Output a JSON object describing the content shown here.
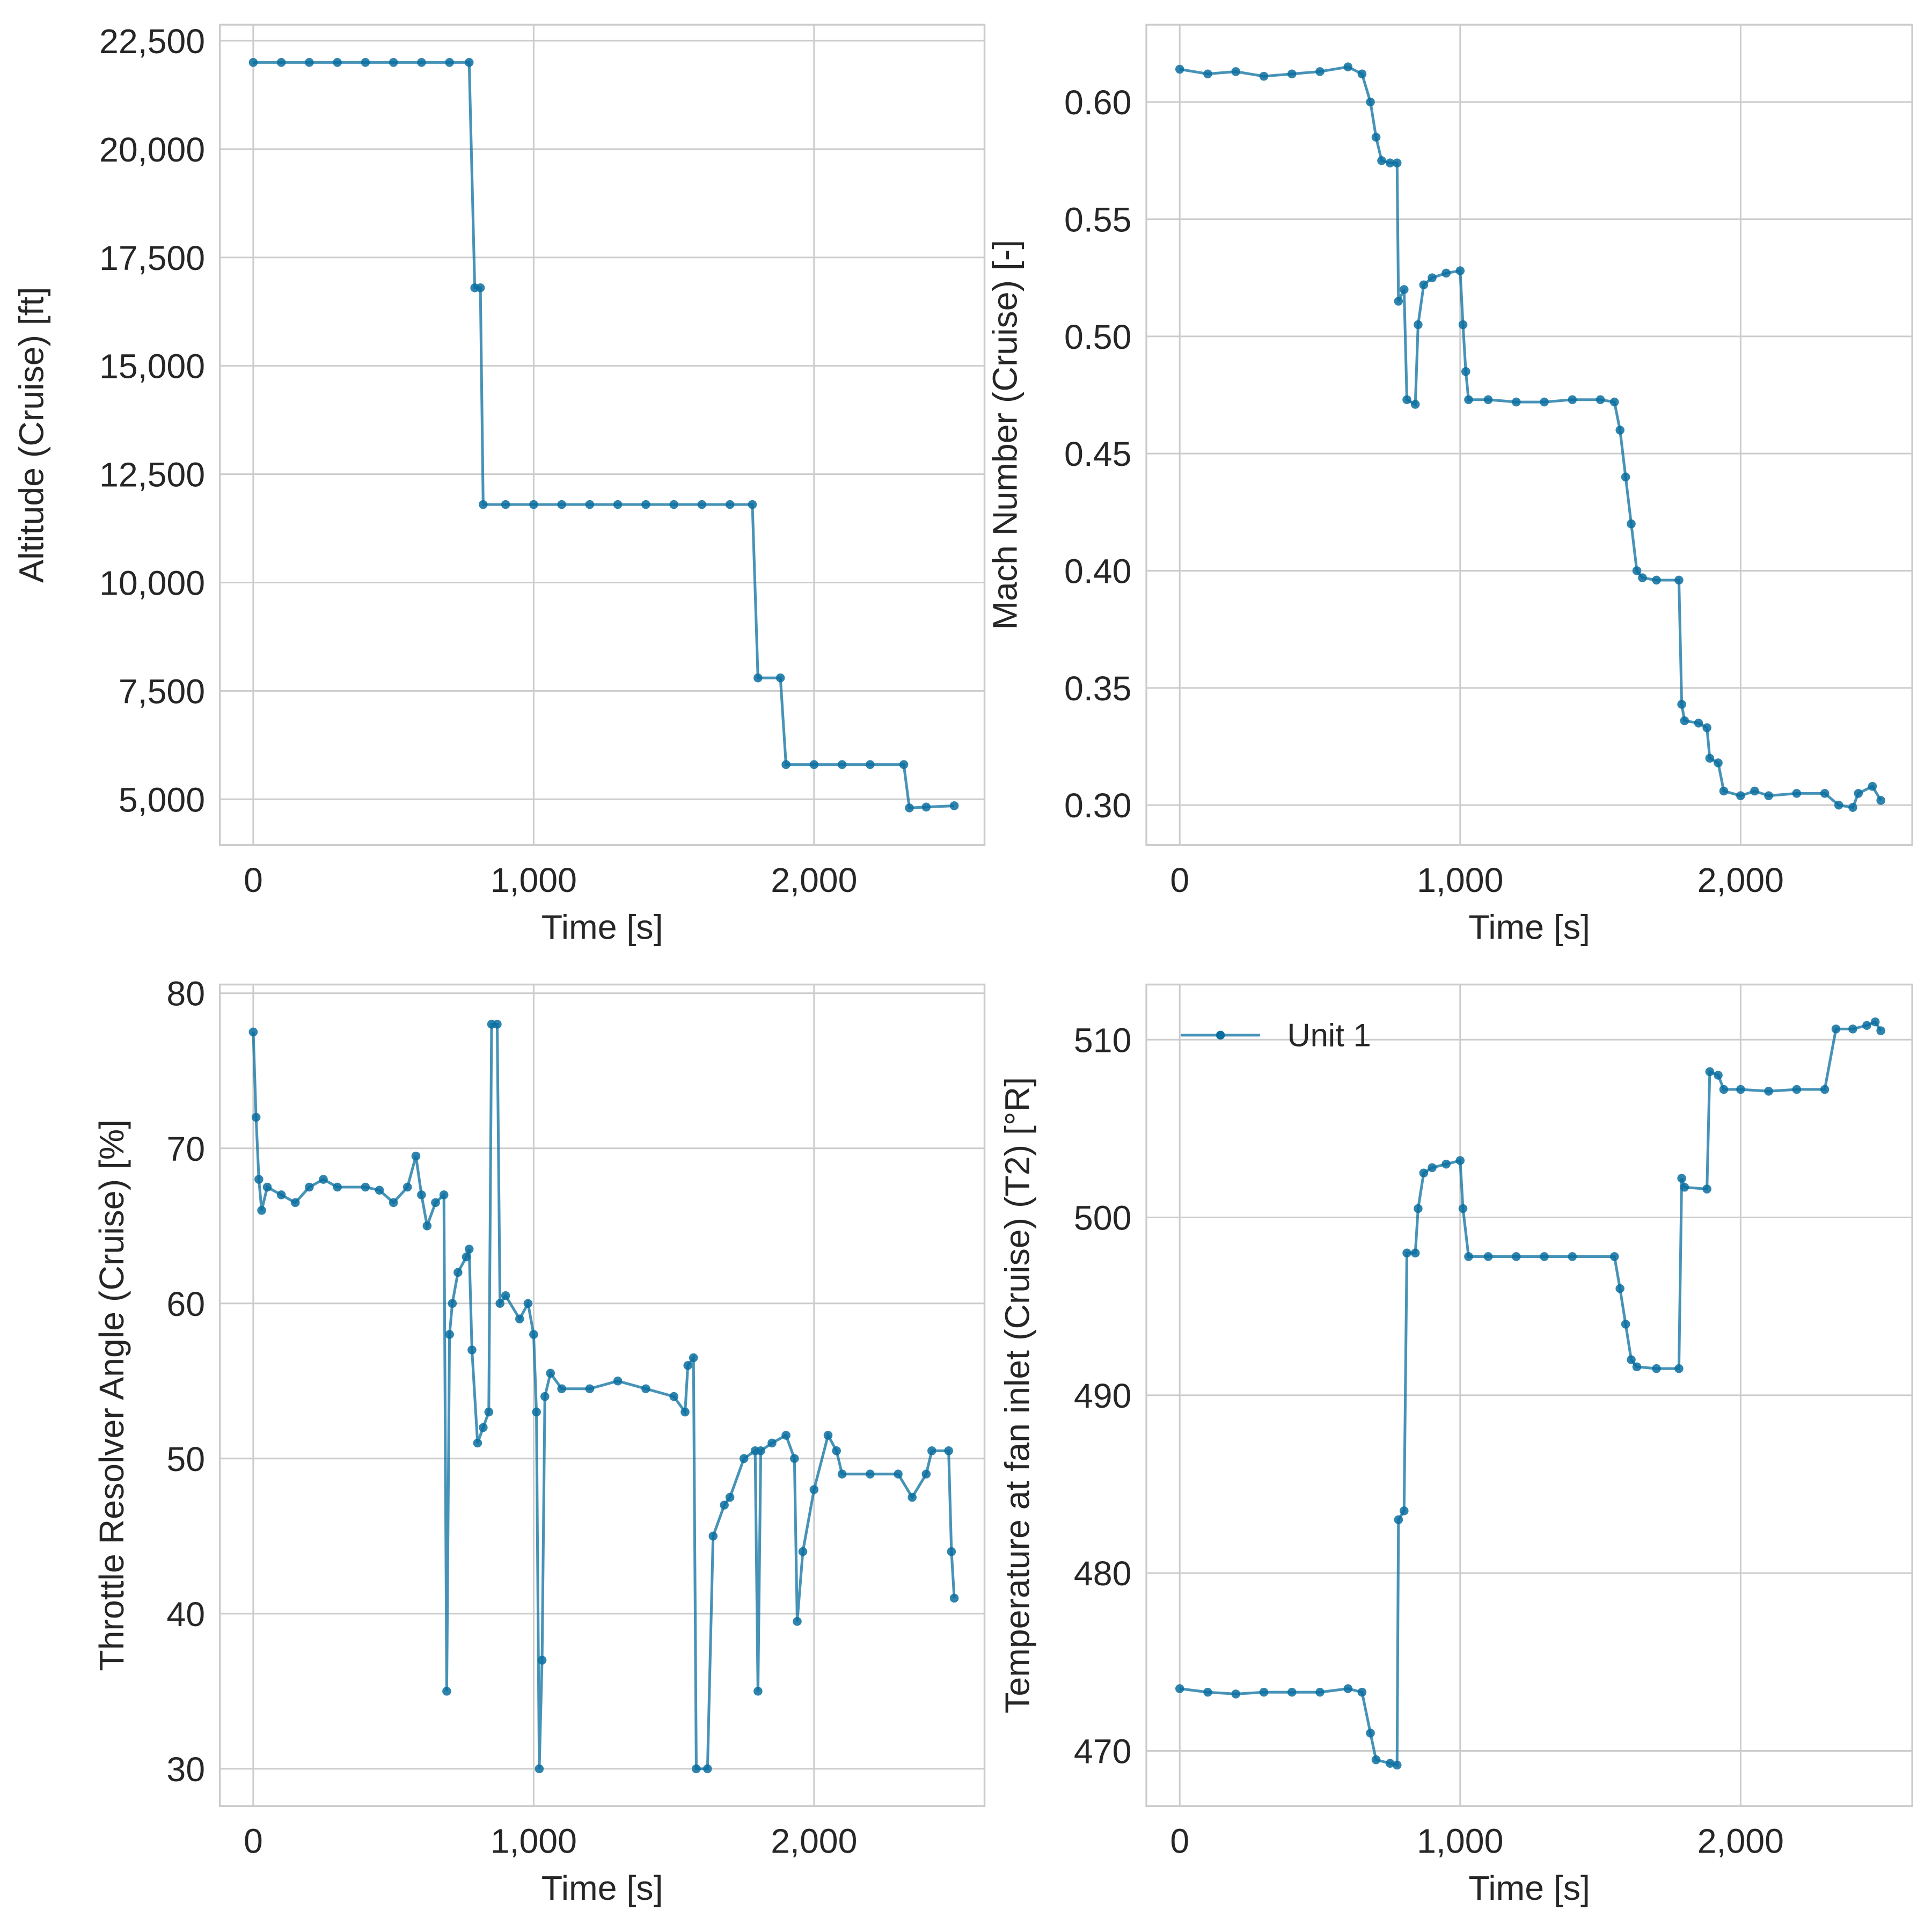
{
  "chart_data": [
    {
      "type": "line",
      "xlabel": "Time [s]",
      "ylabel": "Altitude (Cruise) [ft]",
      "xlim": [
        -119,
        2608
      ],
      "ylim": [
        3946,
        22870
      ],
      "xticks": [
        0,
        {
          "value": 1000,
          "label": "1,000"
        },
        {
          "value": 2000,
          "label": "2,000"
        }
      ],
      "yticks": [
        {
          "value": 5000,
          "label": "5,000"
        },
        {
          "value": 7500,
          "label": "7,500"
        },
        {
          "value": 10000,
          "label": "10,000"
        },
        {
          "value": 12500,
          "label": "12,500"
        },
        {
          "value": 15000,
          "label": "15,000"
        },
        {
          "value": 17500,
          "label": "17,500"
        },
        {
          "value": 20000,
          "label": "20,000"
        },
        {
          "value": 22500,
          "label": "22,500"
        }
      ],
      "grid": true,
      "x": [
        0,
        100,
        200,
        300,
        400,
        500,
        600,
        700,
        770,
        790,
        810,
        820,
        900,
        1000,
        1100,
        1200,
        1300,
        1400,
        1500,
        1600,
        1700,
        1780,
        1800,
        1880,
        1900,
        2000,
        2100,
        2200,
        2320,
        2340,
        2400,
        2500
      ],
      "series": [
        {
          "color": "#0a6fa0",
          "values": [
            22000,
            22000,
            22000,
            22000,
            22000,
            22000,
            22000,
            22000,
            22000,
            16800,
            16800,
            11800,
            11800,
            11800,
            11800,
            11800,
            11800,
            11800,
            11800,
            11800,
            11800,
            11800,
            7800,
            7800,
            5800,
            5800,
            5800,
            5800,
            5800,
            4800,
            4820,
            4850
          ]
        }
      ]
    },
    {
      "type": "line",
      "xlabel": "Time [s]",
      "ylabel": "Mach Number (Cruise) [-]",
      "xlim": [
        -119,
        2612
      ],
      "ylim": [
        0.283,
        0.633
      ],
      "xticks": [
        0,
        {
          "value": 1000,
          "label": "1,000"
        },
        {
          "value": 2000,
          "label": "2,000"
        }
      ],
      "yticks": [
        {
          "value": 0.3,
          "label": "0.30"
        },
        {
          "value": 0.35,
          "label": "0.35"
        },
        {
          "value": 0.4,
          "label": "0.40"
        },
        {
          "value": 0.45,
          "label": "0.45"
        },
        {
          "value": 0.5,
          "label": "0.50"
        },
        {
          "value": 0.55,
          "label": "0.55"
        },
        {
          "value": 0.6,
          "label": "0.60"
        }
      ],
      "grid": true,
      "x": [
        0,
        100,
        200,
        300,
        400,
        500,
        600,
        650,
        680,
        700,
        720,
        750,
        775,
        780,
        800,
        810,
        840,
        850,
        870,
        900,
        950,
        1000,
        1010,
        1020,
        1030,
        1100,
        1200,
        1300,
        1400,
        1500,
        1550,
        1570,
        1590,
        1610,
        1630,
        1650,
        1700,
        1780,
        1790,
        1800,
        1850,
        1880,
        1890,
        1920,
        1940,
        2000,
        2050,
        2100,
        2200,
        2300,
        2350,
        2400,
        2420,
        2470,
        2500
      ],
      "series": [
        {
          "color": "#0a6fa0",
          "values": [
            0.614,
            0.612,
            0.613,
            0.611,
            0.612,
            0.613,
            0.615,
            0.612,
            0.6,
            0.585,
            0.575,
            0.574,
            0.574,
            0.515,
            0.52,
            0.473,
            0.471,
            0.505,
            0.522,
            0.525,
            0.527,
            0.528,
            0.505,
            0.485,
            0.473,
            0.473,
            0.472,
            0.472,
            0.473,
            0.473,
            0.472,
            0.46,
            0.44,
            0.42,
            0.4,
            0.397,
            0.396,
            0.396,
            0.343,
            0.336,
            0.335,
            0.333,
            0.32,
            0.318,
            0.306,
            0.304,
            0.306,
            0.304,
            0.305,
            0.305,
            0.3,
            0.299,
            0.305,
            0.308,
            0.302
          ]
        }
      ]
    },
    {
      "type": "line",
      "xlabel": "Time [s]",
      "ylabel": "Throttle Resolver Angle (Cruise) [%]",
      "xlim": [
        -119,
        2608
      ],
      "ylim": [
        27.6,
        80.56
      ],
      "xticks": [
        0,
        {
          "value": 1000,
          "label": "1,000"
        },
        {
          "value": 2000,
          "label": "2,000"
        }
      ],
      "yticks": [
        30,
        40,
        50,
        60,
        70,
        80
      ],
      "grid": true,
      "x": [
        0,
        10,
        20,
        30,
        50,
        100,
        150,
        200,
        250,
        300,
        400,
        450,
        500,
        550,
        580,
        600,
        620,
        650,
        680,
        690,
        700,
        710,
        730,
        760,
        770,
        780,
        800,
        820,
        840,
        850,
        870,
        880,
        900,
        950,
        980,
        1000,
        1010,
        1020,
        1030,
        1040,
        1060,
        1100,
        1200,
        1300,
        1400,
        1500,
        1540,
        1550,
        1570,
        1580,
        1620,
        1640,
        1680,
        1700,
        1750,
        1790,
        1800,
        1810,
        1850,
        1900,
        1930,
        1940,
        1960,
        2000,
        2050,
        2080,
        2100,
        2200,
        2300,
        2350,
        2400,
        2420,
        2480,
        2490,
        2500
      ],
      "series": [
        {
          "color": "#0a6fa0",
          "values": [
            77.5,
            72,
            68,
            66,
            67.5,
            67,
            66.5,
            67.5,
            68,
            67.5,
            67.5,
            67.3,
            66.5,
            67.5,
            69.5,
            67,
            65,
            66.5,
            67,
            35,
            58,
            60,
            62,
            63,
            63.5,
            57,
            51,
            52,
            53,
            78,
            78,
            60,
            60.5,
            59,
            60,
            58,
            53,
            30,
            37,
            54,
            55.5,
            54.5,
            54.5,
            55,
            54.5,
            54,
            53,
            56,
            56.5,
            30,
            30,
            45,
            47,
            47.5,
            50,
            50.5,
            35,
            50.5,
            51,
            51.5,
            50,
            39.5,
            44,
            48,
            51.5,
            50.5,
            49,
            49,
            49,
            47.5,
            49,
            50.5,
            50.5,
            44,
            41
          ]
        }
      ]
    },
    {
      "type": "line",
      "xlabel": "Time [s]",
      "ylabel": "Temperature at fan inlet (Cruise) (T2) [°R]",
      "xlim": [
        -119,
        2612
      ],
      "ylim": [
        466.9,
        513.1
      ],
      "xticks": [
        0,
        {
          "value": 1000,
          "label": "1,000"
        },
        {
          "value": 2000,
          "label": "2,000"
        }
      ],
      "yticks": [
        470,
        480,
        490,
        500,
        510
      ],
      "grid": true,
      "legend": "upper left",
      "x": [
        0,
        100,
        200,
        300,
        400,
        500,
        600,
        650,
        680,
        700,
        750,
        775,
        780,
        800,
        810,
        840,
        850,
        870,
        900,
        950,
        1000,
        1010,
        1030,
        1100,
        1200,
        1300,
        1400,
        1550,
        1570,
        1590,
        1610,
        1630,
        1700,
        1780,
        1790,
        1800,
        1880,
        1890,
        1920,
        1940,
        2000,
        2100,
        2200,
        2300,
        2340,
        2400,
        2450,
        2480,
        2500
      ],
      "series": [
        {
          "name": "Unit 1",
          "color": "#0a6fa0",
          "values": [
            473.5,
            473.3,
            473.2,
            473.3,
            473.3,
            473.3,
            473.5,
            473.3,
            471,
            469.5,
            469.3,
            469.2,
            483,
            483.5,
            498,
            498,
            500.5,
            502.5,
            502.8,
            503,
            503.2,
            500.5,
            497.8,
            497.8,
            497.8,
            497.8,
            497.8,
            497.8,
            496,
            494,
            492,
            491.6,
            491.5,
            491.5,
            502.2,
            501.7,
            501.6,
            508.2,
            508,
            507.2,
            507.2,
            507.1,
            507.2,
            507.2,
            510.6,
            510.6,
            510.8,
            511,
            510.5
          ]
        }
      ]
    }
  ]
}
